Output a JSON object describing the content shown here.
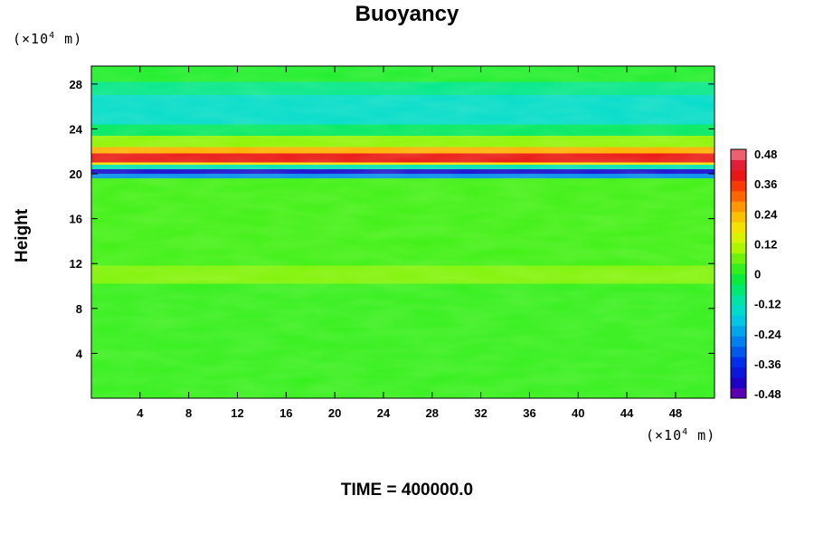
{
  "chart_data": {
    "type": "heatmap",
    "title": "Buoyancy",
    "ylabel": "Height",
    "xlabel": "",
    "x_unit_prefix": "(×10",
    "x_unit_exp": "4",
    "x_unit_suffix": " m)",
    "y_unit_prefix": "(×10",
    "y_unit_exp": "4",
    "y_unit_suffix": " m)",
    "xlim": [
      0,
      51.2
    ],
    "ylim": [
      0,
      29.6
    ],
    "x_ticks": [
      4,
      8,
      12,
      16,
      20,
      24,
      28,
      32,
      36,
      40,
      44,
      48
    ],
    "y_ticks": [
      4,
      8,
      12,
      16,
      20,
      24,
      28
    ],
    "colorbar": {
      "ticks": [
        "0.48",
        "0.36",
        "0.24",
        "0.12",
        "0",
        "-0.12",
        "-0.24",
        "-0.36",
        "-0.48"
      ],
      "range": [
        -0.48,
        0.48
      ],
      "levels": 24
    },
    "bands": [
      {
        "y": [
          0,
          10.2
        ],
        "value": 0.02
      },
      {
        "y": [
          10.2,
          11.8
        ],
        "value": 0.07
      },
      {
        "y": [
          11.8,
          19.6
        ],
        "value": 0.03
      },
      {
        "y": [
          19.6,
          20.0
        ],
        "value": -0.25
      },
      {
        "y": [
          20.0,
          20.4
        ],
        "value": -0.4
      },
      {
        "y": [
          20.4,
          20.8
        ],
        "value": -0.12
      },
      {
        "y": [
          20.8,
          21.0
        ],
        "value": 0.18
      },
      {
        "y": [
          21.0,
          21.8
        ],
        "value": 0.38
      },
      {
        "y": [
          21.8,
          22.4
        ],
        "value": 0.24
      },
      {
        "y": [
          22.4,
          23.4
        ],
        "value": 0.08
      },
      {
        "y": [
          23.4,
          24.4
        ],
        "value": -0.05
      },
      {
        "y": [
          24.4,
          27.0
        ],
        "value": -0.14
      },
      {
        "y": [
          27.0,
          28.2
        ],
        "value": -0.08
      },
      {
        "y": [
          28.2,
          29.6
        ],
        "value": 0.0
      }
    ]
  },
  "footer": {
    "time_label": "TIME = 400000.0"
  }
}
